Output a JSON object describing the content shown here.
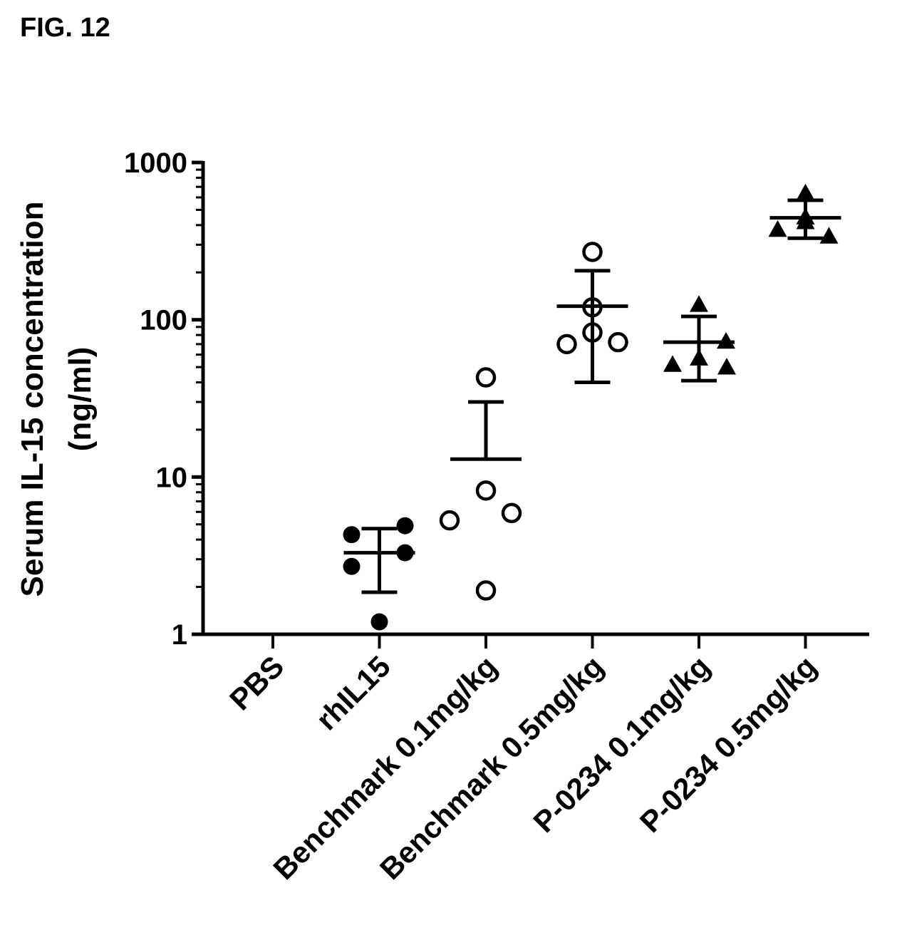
{
  "figure": {
    "label": "FIG. 12"
  },
  "chart_data": {
    "type": "scatter",
    "x_scale": "categorical",
    "y_scale": "log",
    "ylabel_line1": "Serum IL-15 concentration",
    "ylabel_line2": "(ng/ml)",
    "ylim": [
      1,
      1000
    ],
    "yticks": [
      1,
      10,
      100,
      1000
    ],
    "ytick_labels": [
      "1",
      "10",
      "100",
      "1000"
    ],
    "grid": false,
    "legend": "none",
    "categories": [
      "PBS",
      "rhIL15",
      "Benchmark 0.1mg/kg",
      "Benchmark 0.5mg/kg",
      "P-0234 0.1mg/kg",
      "P-0234 0.5mg/kg"
    ],
    "groups": [
      {
        "category": "PBS",
        "marker": "none",
        "points": [],
        "mean": null,
        "sd_low": null,
        "sd_high": null
      },
      {
        "category": "rhIL15",
        "marker": "filled-circle",
        "points": [
          4.3,
          4.9,
          2.7,
          3.3,
          1.2
        ],
        "mean": 3.3,
        "sd_low": 1.85,
        "sd_high": 4.7
      },
      {
        "category": "Benchmark 0.1mg/kg",
        "marker": "open-circle",
        "points": [
          43,
          8.2,
          5.3,
          5.9,
          1.9
        ],
        "mean": 13,
        "sd_low": null,
        "sd_high": 30
      },
      {
        "category": "Benchmark 0.5mg/kg",
        "marker": "open-circle",
        "points": [
          270,
          120,
          83,
          70,
          72
        ],
        "mean": 122,
        "sd_low": 40,
        "sd_high": 205
      },
      {
        "category": "P-0234 0.1mg/kg",
        "marker": "filled-triangle",
        "points": [
          125,
          73,
          57,
          52,
          50
        ],
        "mean": 72,
        "sd_low": 41,
        "sd_high": 105
      },
      {
        "category": "P-0234 0.5mg/kg",
        "marker": "filled-triangle",
        "points": [
          640,
          450,
          420,
          375,
          340
        ],
        "mean": 445,
        "sd_low": 330,
        "sd_high": 575
      }
    ],
    "colors": {
      "ink": "#000000",
      "background": "#ffffff"
    }
  }
}
